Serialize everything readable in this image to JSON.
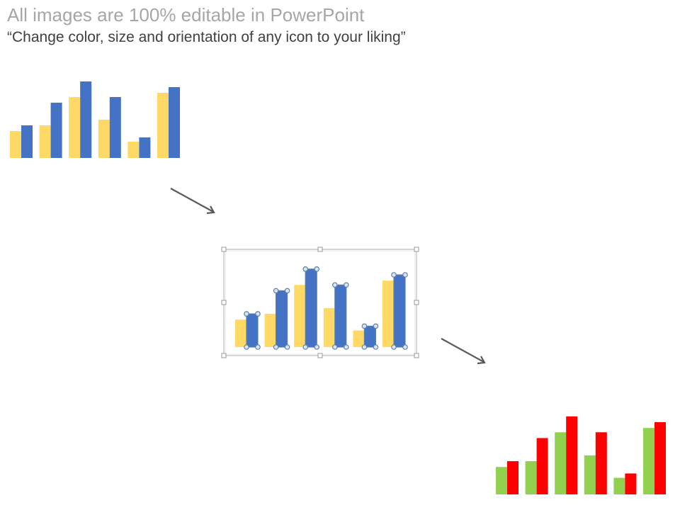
{
  "header": {
    "title": "All images are 100% editable in PowerPoint",
    "subtitle": "“Change color, size and orientation of any icon to your liking”"
  },
  "icons": {
    "arrow_icon": "arrow-down-right-icon",
    "selection_handle_icon": "selection-handle-icon"
  },
  "colors": {
    "original_series_a": "#FFD966",
    "original_series_b": "#4472C4",
    "recolored_series_a": "#92D050",
    "recolored_series_b": "#FF0000",
    "selection_frame": "#bfbfbf",
    "handle_fill": "#dbe5f1",
    "handle_stroke": "#5b7fa8",
    "arrow": "#595959"
  },
  "chart_data": [
    {
      "type": "bar",
      "series": [
        {
          "values": [
            38,
            46,
            86,
            54,
            23,
            92
          ]
        },
        {
          "values": [
            46,
            78,
            108,
            86,
            29,
            100
          ]
        }
      ]
    },
    {
      "type": "bar",
      "series": [
        {
          "values": [
            38,
            46,
            86,
            54,
            23,
            92
          ]
        },
        {
          "values": [
            46,
            78,
            108,
            86,
            29,
            100
          ]
        }
      ]
    },
    {
      "type": "bar",
      "series": [
        {
          "values": [
            38,
            46,
            86,
            54,
            23,
            92
          ]
        },
        {
          "values": [
            46,
            78,
            108,
            86,
            29,
            100
          ]
        }
      ]
    }
  ]
}
